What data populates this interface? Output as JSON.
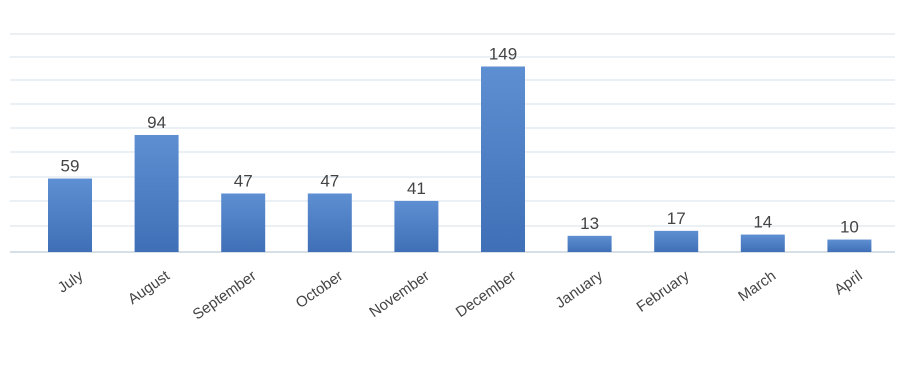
{
  "chart_data": {
    "type": "bar",
    "title": "",
    "xlabel": "",
    "ylabel": "",
    "categories": [
      "July",
      "August",
      "September",
      "October",
      "November",
      "December",
      "January",
      "February",
      "March",
      "April"
    ],
    "values": [
      59,
      94,
      47,
      47,
      41,
      149,
      13,
      17,
      14,
      10
    ],
    "ylim": [
      0,
      160
    ],
    "grid": true,
    "legend": "none",
    "colors": {
      "bar": "#4a7cc4",
      "bar_top": "#5e8fd2",
      "bar_bottom": "#3f6fb6",
      "grid": "#dfe6ee"
    }
  }
}
